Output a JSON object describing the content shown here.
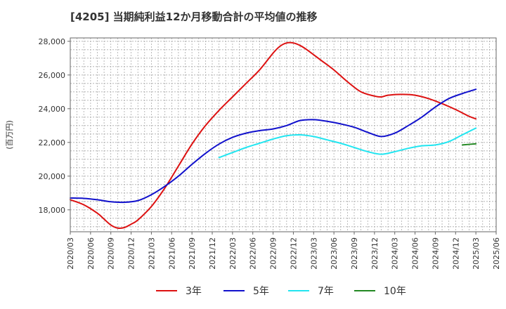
{
  "chart_data": {
    "type": "line",
    "title": "[4205]  当期純利益12か月移動合計の平均値の推移",
    "ylabel": "(百万円)",
    "xlabel": "",
    "ylim": [
      16700,
      28200
    ],
    "yticks": [
      18000,
      20000,
      22000,
      24000,
      26000,
      28000
    ],
    "ytick_labels": [
      "18,000",
      "20,000",
      "22,000",
      "24,000",
      "26,000",
      "28,000"
    ],
    "xlim": [
      "2020-03",
      "2025-06"
    ],
    "xtick_labels": [
      "2020/03",
      "2020/06",
      "2020/09",
      "2020/12",
      "2021/03",
      "2021/06",
      "2021/09",
      "2021/12",
      "2022/03",
      "2022/06",
      "2022/09",
      "2022/12",
      "2023/03",
      "2023/06",
      "2023/09",
      "2023/12",
      "2024/03",
      "2024/06",
      "2024/09",
      "2024/12",
      "2025/03",
      "2025/06"
    ],
    "grid": true,
    "legend_position": "bottom",
    "series": [
      {
        "name": "3年",
        "color": "#dd1111",
        "x": [
          "2020-03",
          "2020-05",
          "2020-07",
          "2020-08",
          "2020-09",
          "2020-10",
          "2020-11",
          "2020-12",
          "2021-01",
          "2021-03",
          "2021-05",
          "2021-07",
          "2021-09",
          "2021-11",
          "2022-01",
          "2022-03",
          "2022-05",
          "2022-07",
          "2022-09",
          "2022-10",
          "2022-11",
          "2022-12",
          "2023-01",
          "2023-02",
          "2023-04",
          "2023-06",
          "2023-08",
          "2023-10",
          "2023-12",
          "2024-01",
          "2024-02",
          "2024-04",
          "2024-06",
          "2024-08",
          "2024-10",
          "2024-12",
          "2025-02",
          "2025-03"
        ],
        "values": [
          18600,
          18300,
          17800,
          17450,
          17100,
          16920,
          16950,
          17150,
          17400,
          18200,
          19300,
          20600,
          21900,
          23000,
          23900,
          24700,
          25500,
          26300,
          27300,
          27700,
          27900,
          27900,
          27750,
          27500,
          26900,
          26300,
          25600,
          25000,
          24750,
          24700,
          24800,
          24850,
          24800,
          24600,
          24300,
          23950,
          23550,
          23400
        ]
      },
      {
        "name": "5年",
        "color": "#1111cc",
        "x": [
          "2020-03",
          "2020-05",
          "2020-07",
          "2020-09",
          "2020-11",
          "2021-01",
          "2021-03",
          "2021-05",
          "2021-07",
          "2021-09",
          "2021-11",
          "2022-01",
          "2022-03",
          "2022-05",
          "2022-07",
          "2022-09",
          "2022-11",
          "2023-01",
          "2023-03",
          "2023-05",
          "2023-07",
          "2023-09",
          "2023-11",
          "2024-01",
          "2024-03",
          "2024-05",
          "2024-07",
          "2024-09",
          "2024-11",
          "2025-01",
          "2025-03"
        ],
        "values": [
          18700,
          18680,
          18600,
          18480,
          18450,
          18550,
          18900,
          19400,
          20000,
          20700,
          21350,
          21900,
          22300,
          22550,
          22700,
          22800,
          23000,
          23300,
          23350,
          23250,
          23100,
          22900,
          22600,
          22350,
          22550,
          23000,
          23500,
          24100,
          24600,
          24900,
          25150
        ]
      },
      {
        "name": "7年",
        "color": "#22e5f0",
        "x": [
          "2022-01",
          "2022-03",
          "2022-05",
          "2022-07",
          "2022-09",
          "2022-11",
          "2023-01",
          "2023-03",
          "2023-05",
          "2023-07",
          "2023-09",
          "2023-11",
          "2024-01",
          "2024-03",
          "2024-05",
          "2024-07",
          "2024-09",
          "2024-11",
          "2025-01",
          "2025-03"
        ],
        "values": [
          21100,
          21400,
          21700,
          21950,
          22200,
          22400,
          22450,
          22350,
          22150,
          21950,
          21700,
          21450,
          21300,
          21450,
          21650,
          21800,
          21850,
          22050,
          22450,
          22850
        ]
      },
      {
        "name": "10年",
        "color": "#228822",
        "x": [
          "2025-01",
          "2025-03"
        ],
        "values": [
          21850,
          21920
        ]
      }
    ]
  }
}
